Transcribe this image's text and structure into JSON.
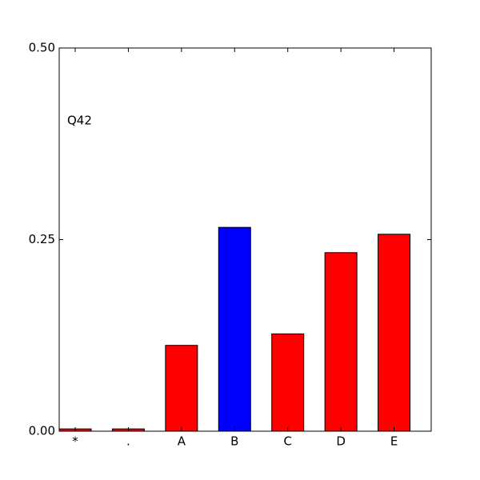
{
  "chart_data": {
    "type": "bar",
    "annotation": "Q42",
    "categories": [
      "*",
      ".",
      "A",
      "B",
      "C",
      "D",
      "E"
    ],
    "values": [
      0.003,
      0.003,
      0.112,
      0.266,
      0.127,
      0.233,
      0.257
    ],
    "colors": [
      "#ff0000",
      "#ff0000",
      "#ff0000",
      "#0000ff",
      "#ff0000",
      "#ff0000",
      "#ff0000"
    ],
    "ylim": [
      0,
      0.5
    ],
    "yticks": [
      {
        "value": 0,
        "label": "0.00"
      },
      {
        "value": 0.25,
        "label": "0.25"
      },
      {
        "value": 0.5,
        "label": "0.50"
      }
    ]
  }
}
